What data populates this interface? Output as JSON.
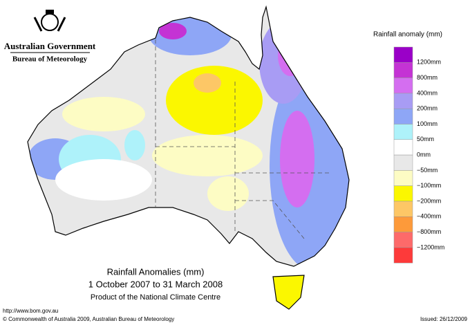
{
  "header": {
    "government": "Australian Government",
    "agency": "Bureau of Meteorology"
  },
  "map": {
    "title": "Rainfall Anomalies (mm)",
    "period": "1 October 2007 to 31 March 2008",
    "product": "Product of the National Climate Centre"
  },
  "legend": {
    "title": "Rainfall anomaly (mm)",
    "colors": [
      "#9a00c8",
      "#c433d4",
      "#d46ef0",
      "#a89cf4",
      "#8ea6f6",
      "#aef2fa",
      "#ffffff",
      "#e8e8e8",
      "#fdfcc4",
      "#fbf700",
      "#fdc766",
      "#fd9a3a",
      "#fd6a6a",
      "#fd3a3a"
    ],
    "labels": [
      "1200mm",
      "800mm",
      "400mm",
      "200mm",
      "100mm",
      "50mm",
      "0mm",
      "−50mm",
      "−100mm",
      "−200mm",
      "−400mm",
      "−800mm",
      "−1200mm"
    ]
  },
  "footer": {
    "url": "http://www.bom.gov.au",
    "copyright": "© Commonwealth of Australia 2009, Australian Bureau of Meteorology",
    "issued": "Issued: 26/12/2009"
  }
}
